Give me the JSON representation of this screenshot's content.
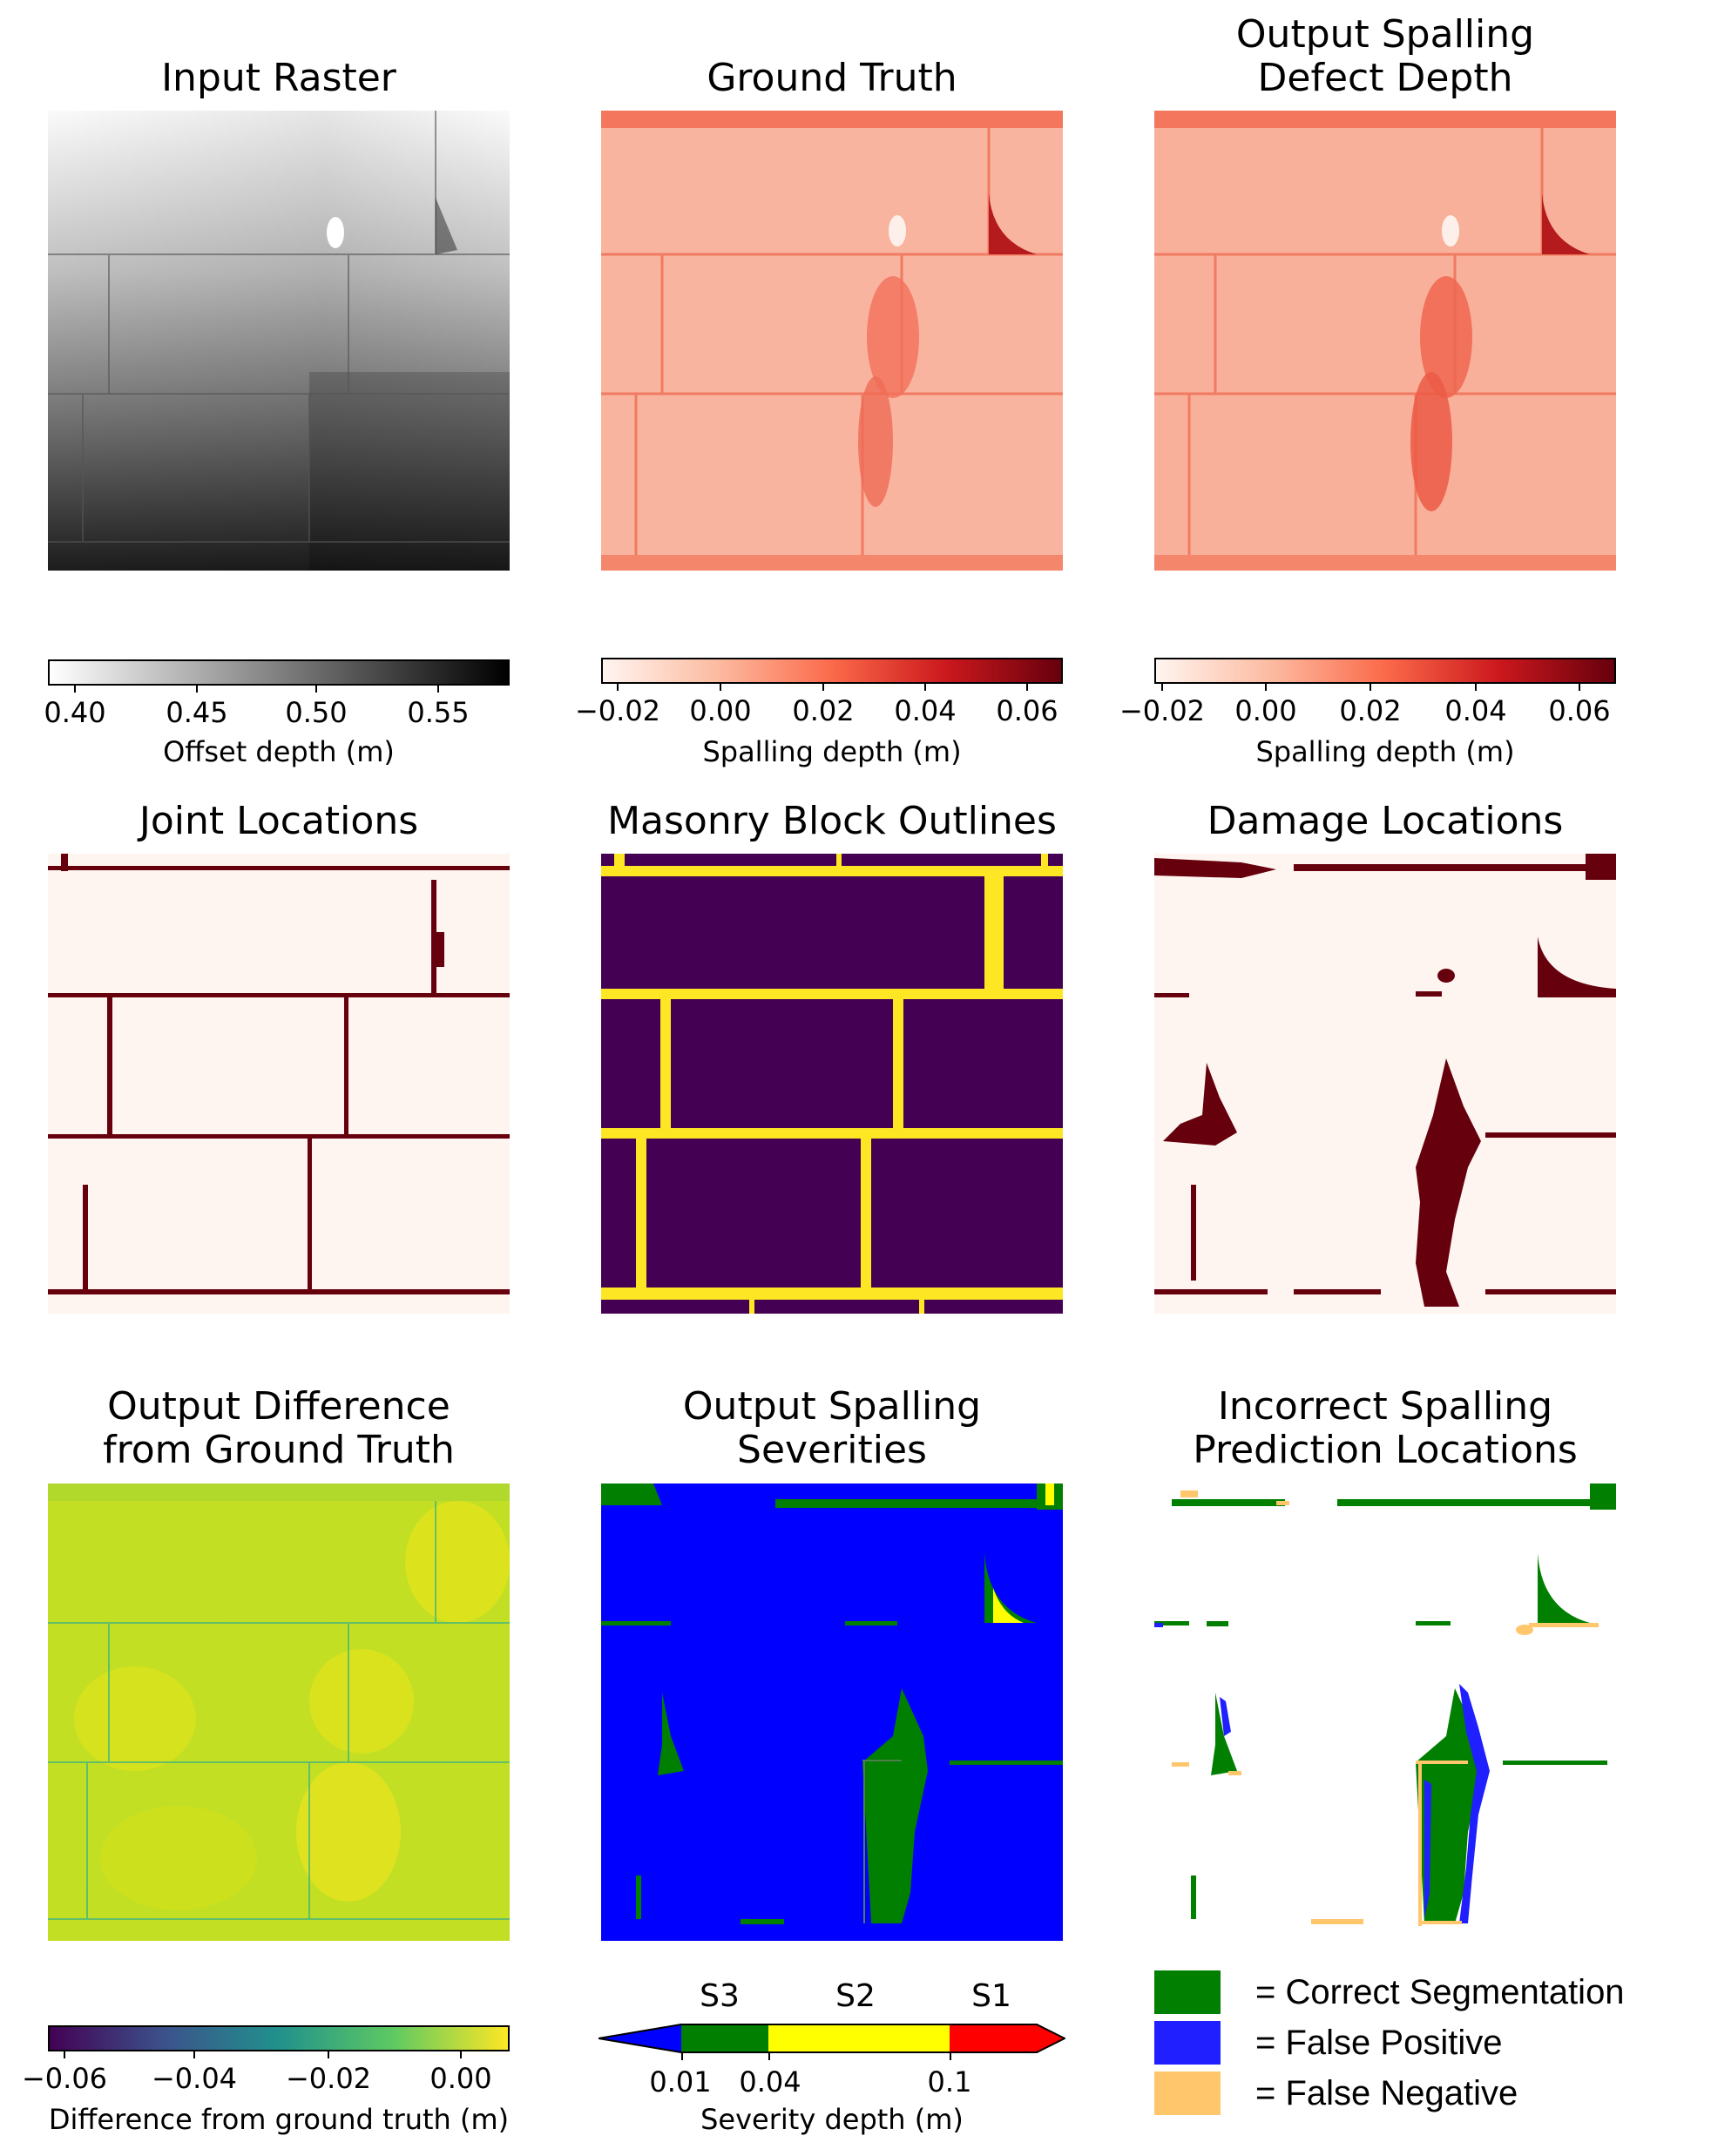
{
  "panels": {
    "input_raster": {
      "title": "Input Raster",
      "cbar_label": "Offset depth (m)",
      "ticks": [
        "0.40",
        "0.45",
        "0.50",
        "0.55"
      ]
    },
    "ground_truth": {
      "title": "Ground Truth",
      "cbar_label": "Spalling depth (m)",
      "ticks": [
        "−0.02",
        "0.00",
        "0.02",
        "0.04",
        "0.06"
      ]
    },
    "output_depth": {
      "title": "Output Spalling\nDefect Depth",
      "cbar_label": "Spalling depth (m)",
      "ticks": [
        "−0.02",
        "0.00",
        "0.02",
        "0.04",
        "0.06"
      ]
    },
    "joint_locations": {
      "title": "Joint Locations"
    },
    "block_outlines": {
      "title": "Masonry Block Outlines"
    },
    "damage_locations": {
      "title": "Damage Locations"
    },
    "output_difference": {
      "title": "Output Difference\nfrom Ground Truth",
      "cbar_label": "Difference from ground truth (m)",
      "ticks": [
        "−0.06",
        "−0.04",
        "−0.02",
        "0.00"
      ]
    },
    "output_severities": {
      "title": "Output Spalling\nSeverities",
      "cbar_label": "Severity depth (m)",
      "ticks": [
        "0.01",
        "0.04",
        "0.1"
      ],
      "severity_labels": [
        "S3",
        "S2",
        "S1"
      ]
    },
    "incorrect_locations": {
      "title": "Incorrect Spalling\nPrediction Locations"
    }
  },
  "legend": [
    {
      "label": "= Correct Segmentation",
      "color": "#007f00"
    },
    {
      "label": "= False Positive",
      "color": "#1f1fff"
    },
    {
      "label": "= False Negative",
      "color": "#ffc66b"
    }
  ],
  "colors": {
    "reds_light": "#fdece4",
    "reds_mid": "#f6836b",
    "reds_dark": "#67000d",
    "viridis_dark": "#440154",
    "viridis_yellow": "#fde725",
    "severity_blue": "#0000ff",
    "severity_green": "#007f00",
    "severity_yellow": "#ffff00",
    "severity_red": "#ff0000"
  }
}
